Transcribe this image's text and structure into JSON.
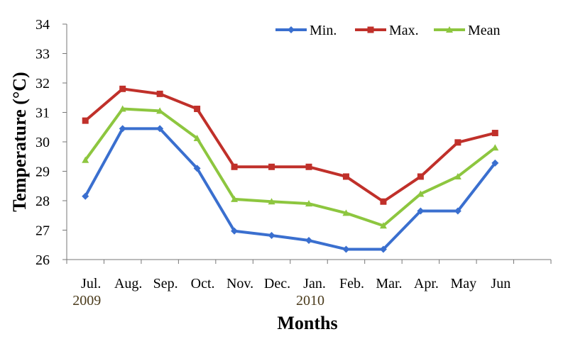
{
  "chart_data": {
    "type": "line",
    "categories": [
      "Jul.",
      "Aug.",
      "Sep.",
      "Oct.",
      "Nov.",
      "Dec.",
      "Jan.",
      "Feb.",
      "Mar.",
      "Apr.",
      "May",
      "Jun"
    ],
    "year_labels": [
      {
        "category_index": 0,
        "text": "2009"
      },
      {
        "category_index": 6,
        "text": "2010"
      }
    ],
    "series": [
      {
        "name": "Min.",
        "color": "#3a6fcf",
        "marker": "diamond",
        "values": [
          28.15,
          30.45,
          30.45,
          29.1,
          26.97,
          26.82,
          26.65,
          26.35,
          26.35,
          27.65,
          27.65,
          29.28
        ]
      },
      {
        "name": "Max.",
        "color": "#c0302a",
        "marker": "square",
        "values": [
          30.72,
          31.8,
          31.63,
          31.12,
          29.15,
          29.15,
          29.15,
          28.82,
          27.97,
          28.82,
          29.98,
          30.3
        ]
      },
      {
        "name": "Mean",
        "color": "#8dc63f",
        "marker": "triangle",
        "values": [
          29.38,
          31.12,
          31.05,
          30.12,
          28.05,
          27.97,
          27.9,
          27.58,
          27.15,
          28.23,
          28.82,
          29.8
        ]
      }
    ],
    "ylabel": "Temperature (°C)",
    "xlabel": "Months",
    "ylim": [
      26,
      34
    ],
    "yticks": [
      26,
      27,
      28,
      29,
      30,
      31,
      32,
      33,
      34
    ],
    "grid": false,
    "legend": "top-right"
  }
}
